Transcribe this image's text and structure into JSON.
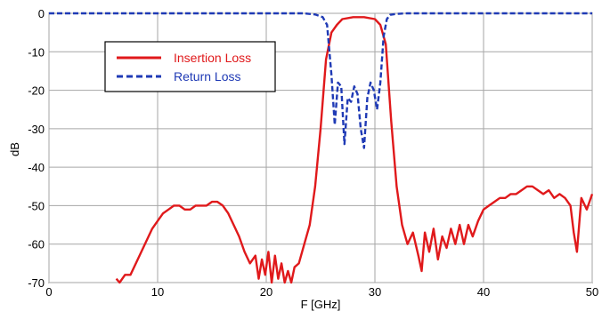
{
  "chart_data": {
    "type": "line",
    "title": "",
    "xlabel": "F [GHz]",
    "ylabel": "dB",
    "xlim": [
      0,
      50
    ],
    "ylim": [
      -70,
      0
    ],
    "x_ticks": [
      "0",
      "10",
      "20",
      "30",
      "40",
      "50"
    ],
    "y_ticks": [
      "0",
      "-10",
      "-20",
      "-30",
      "-40",
      "-50",
      "-60",
      "-70"
    ],
    "grid": true,
    "legend_position": "upper-left",
    "series": [
      {
        "name": "Insertion Loss",
        "color": "#e0191b",
        "style": "solid",
        "x": [
          6.2,
          6.5,
          7.0,
          7.5,
          8.0,
          8.5,
          9.0,
          9.5,
          10.0,
          10.5,
          11.0,
          11.5,
          12.0,
          12.5,
          13.0,
          13.5,
          14.0,
          14.5,
          15.0,
          15.5,
          16.0,
          16.5,
          17.0,
          17.5,
          18.0,
          18.5,
          19.0,
          19.3,
          19.6,
          19.9,
          20.2,
          20.5,
          20.8,
          21.1,
          21.4,
          21.7,
          22.0,
          22.3,
          22.6,
          23.0,
          23.5,
          24.0,
          24.5,
          25.0,
          25.5,
          26.0,
          26.5,
          27.0,
          28.0,
          29.0,
          30.0,
          30.5,
          31.0,
          31.5,
          32.0,
          32.5,
          33.0,
          33.5,
          34.0,
          34.3,
          34.6,
          35.0,
          35.4,
          35.8,
          36.2,
          36.6,
          37.0,
          37.4,
          37.8,
          38.2,
          38.6,
          39.0,
          39.5,
          40.0,
          40.5,
          41.0,
          41.5,
          42.0,
          42.5,
          43.0,
          43.5,
          44.0,
          44.5,
          45.0,
          45.5,
          46.0,
          46.5,
          47.0,
          47.5,
          48.0,
          48.3,
          48.6,
          49.0,
          49.5,
          50.0
        ],
        "y": [
          -69,
          -70,
          -68,
          -68,
          -65,
          -62,
          -59,
          -56,
          -54,
          -52,
          -51,
          -50,
          -50,
          -51,
          -51,
          -50,
          -50,
          -50,
          -49,
          -49,
          -50,
          -52,
          -55,
          -58,
          -62,
          -65,
          -63,
          -69,
          -64,
          -68,
          -62,
          -70,
          -63,
          -69,
          -65,
          -70,
          -67,
          -70,
          -66,
          -65,
          -60,
          -55,
          -45,
          -30,
          -12,
          -5,
          -3,
          -1.5,
          -1,
          -1,
          -1.5,
          -3,
          -8,
          -28,
          -45,
          -55,
          -60,
          -57,
          -63,
          -67,
          -57,
          -62,
          -56,
          -64,
          -58,
          -61,
          -56,
          -60,
          -55,
          -60,
          -55,
          -58,
          -54,
          -51,
          -50,
          -49,
          -48,
          -48,
          -47,
          -47,
          -46,
          -45,
          -45,
          -46,
          -47,
          -46,
          -48,
          -47,
          -48,
          -50,
          -57,
          -62,
          -48,
          -51,
          -47
        ]
      },
      {
        "name": "Return Loss",
        "color": "#1f3ab5",
        "style": "dashed",
        "x": [
          0,
          5,
          10,
          15,
          20,
          22,
          23.5,
          24.5,
          25.2,
          25.6,
          26.0,
          26.3,
          26.6,
          26.9,
          27.2,
          27.5,
          27.8,
          28.1,
          28.4,
          28.7,
          29.0,
          29.3,
          29.6,
          29.9,
          30.2,
          30.5,
          30.8,
          31.1,
          31.4,
          31.8,
          32.3,
          33.0,
          35,
          40,
          45,
          50
        ],
        "y": [
          0,
          0,
          0,
          0,
          0,
          0,
          0,
          -0.3,
          -1,
          -3,
          -16,
          -29,
          -18,
          -19,
          -34,
          -22,
          -23,
          -19,
          -21,
          -30,
          -35,
          -22,
          -18,
          -20,
          -25,
          -18,
          -6,
          -1.5,
          -0.4,
          -0.2,
          -0.1,
          0,
          0,
          0,
          0,
          0
        ]
      }
    ]
  }
}
